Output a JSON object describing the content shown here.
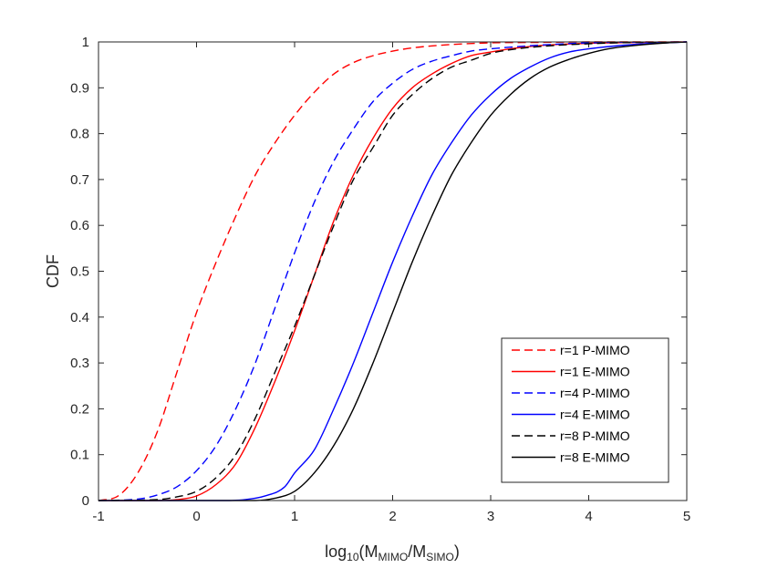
{
  "chart_data": {
    "type": "line",
    "title": "",
    "xlabel": "log10(MMIMO/MSIMO)",
    "xlabel_parts": {
      "base": "log",
      "base_sub": "10",
      "open": "(M",
      "num_sub": "MIMO",
      "slash": "/M",
      "den_sub": "SIMO",
      "close": ")"
    },
    "ylabel": "CDF",
    "xlim": [
      -1,
      5
    ],
    "ylim": [
      0,
      1
    ],
    "xticks": [
      "-1",
      "0",
      "1",
      "2",
      "3",
      "4",
      "5"
    ],
    "yticks": [
      "0",
      "0.1",
      "0.2",
      "0.3",
      "0.4",
      "0.5",
      "0.6",
      "0.7",
      "0.8",
      "0.9",
      "1"
    ],
    "legend_position": "bottom-right",
    "series": [
      {
        "name": "r=1 P-MIMO",
        "color": "#ff0000",
        "dash": "dashed",
        "x": [
          -1,
          -0.8,
          -0.6,
          -0.4,
          -0.2,
          0,
          0.2,
          0.4,
          0.6,
          0.8,
          1.0,
          1.2,
          1.4,
          1.6,
          1.8,
          2.0,
          2.2,
          2.5,
          3.0,
          3.5,
          4.0,
          5.0
        ],
        "y": [
          0,
          0.01,
          0.06,
          0.15,
          0.28,
          0.41,
          0.52,
          0.62,
          0.71,
          0.78,
          0.84,
          0.89,
          0.93,
          0.955,
          0.97,
          0.98,
          0.987,
          0.993,
          0.998,
          0.999,
          1.0,
          1.0
        ]
      },
      {
        "name": "r=1 E-MIMO",
        "color": "#ff0000",
        "dash": "solid",
        "x": [
          -1,
          -0.4,
          -0.2,
          0,
          0.2,
          0.4,
          0.6,
          0.8,
          1.0,
          1.2,
          1.4,
          1.6,
          1.8,
          2.0,
          2.2,
          2.4,
          2.6,
          2.8,
          3.0,
          3.2,
          3.5,
          4.0,
          4.5,
          5.0
        ],
        "y": [
          0,
          0,
          0.002,
          0.01,
          0.035,
          0.08,
          0.16,
          0.26,
          0.37,
          0.49,
          0.61,
          0.71,
          0.79,
          0.855,
          0.9,
          0.93,
          0.953,
          0.97,
          0.978,
          0.985,
          0.992,
          0.997,
          0.999,
          1.0
        ]
      },
      {
        "name": "r=4 P-MIMO",
        "color": "#0000ff",
        "dash": "dashed",
        "x": [
          -1,
          -0.6,
          -0.4,
          -0.2,
          0,
          0.2,
          0.4,
          0.6,
          0.8,
          1.0,
          1.2,
          1.4,
          1.6,
          1.8,
          2.0,
          2.2,
          2.4,
          2.6,
          2.8,
          3.0,
          3.5,
          4.0,
          5.0
        ],
        "y": [
          0,
          0.003,
          0.012,
          0.03,
          0.065,
          0.12,
          0.2,
          0.3,
          0.42,
          0.54,
          0.65,
          0.74,
          0.81,
          0.87,
          0.91,
          0.94,
          0.958,
          0.97,
          0.98,
          0.985,
          0.993,
          0.998,
          1.0
        ]
      },
      {
        "name": "r=4 E-MIMO",
        "color": "#0000ff",
        "dash": "solid",
        "x": [
          -1,
          0.3,
          0.5,
          0.7,
          0.9,
          1.0,
          1.2,
          1.4,
          1.6,
          1.8,
          2.0,
          2.2,
          2.4,
          2.6,
          2.8,
          3.0,
          3.2,
          3.4,
          3.6,
          3.8,
          4.0,
          4.5,
          5.0
        ],
        "y": [
          0,
          0,
          0.002,
          0.01,
          0.03,
          0.06,
          0.11,
          0.2,
          0.3,
          0.41,
          0.52,
          0.62,
          0.71,
          0.78,
          0.84,
          0.885,
          0.92,
          0.945,
          0.965,
          0.978,
          0.985,
          0.995,
          1.0
        ]
      },
      {
        "name": "r=8 P-MIMO",
        "color": "#000000",
        "dash": "dashed",
        "x": [
          -1,
          -0.4,
          -0.2,
          0,
          0.2,
          0.4,
          0.6,
          0.8,
          1.0,
          1.2,
          1.4,
          1.6,
          1.8,
          2.0,
          2.2,
          2.4,
          2.6,
          2.8,
          3.0,
          3.2,
          3.5,
          4.0,
          4.5,
          5.0
        ],
        "y": [
          0,
          0.002,
          0.008,
          0.02,
          0.05,
          0.1,
          0.18,
          0.28,
          0.38,
          0.49,
          0.6,
          0.7,
          0.77,
          0.84,
          0.885,
          0.92,
          0.945,
          0.96,
          0.975,
          0.983,
          0.99,
          0.996,
          0.999,
          1.0
        ]
      },
      {
        "name": "r=8 E-MIMO",
        "color": "#000000",
        "dash": "solid",
        "x": [
          -1,
          0.6,
          0.8,
          1.0,
          1.2,
          1.4,
          1.6,
          1.8,
          2.0,
          2.2,
          2.4,
          2.6,
          2.8,
          3.0,
          3.2,
          3.4,
          3.6,
          3.8,
          4.0,
          4.2,
          4.5,
          4.8,
          5.0
        ],
        "y": [
          0,
          0,
          0.005,
          0.02,
          0.06,
          0.12,
          0.2,
          0.3,
          0.41,
          0.52,
          0.62,
          0.71,
          0.78,
          0.84,
          0.885,
          0.92,
          0.945,
          0.962,
          0.975,
          0.985,
          0.993,
          0.998,
          1.0
        ]
      }
    ]
  }
}
